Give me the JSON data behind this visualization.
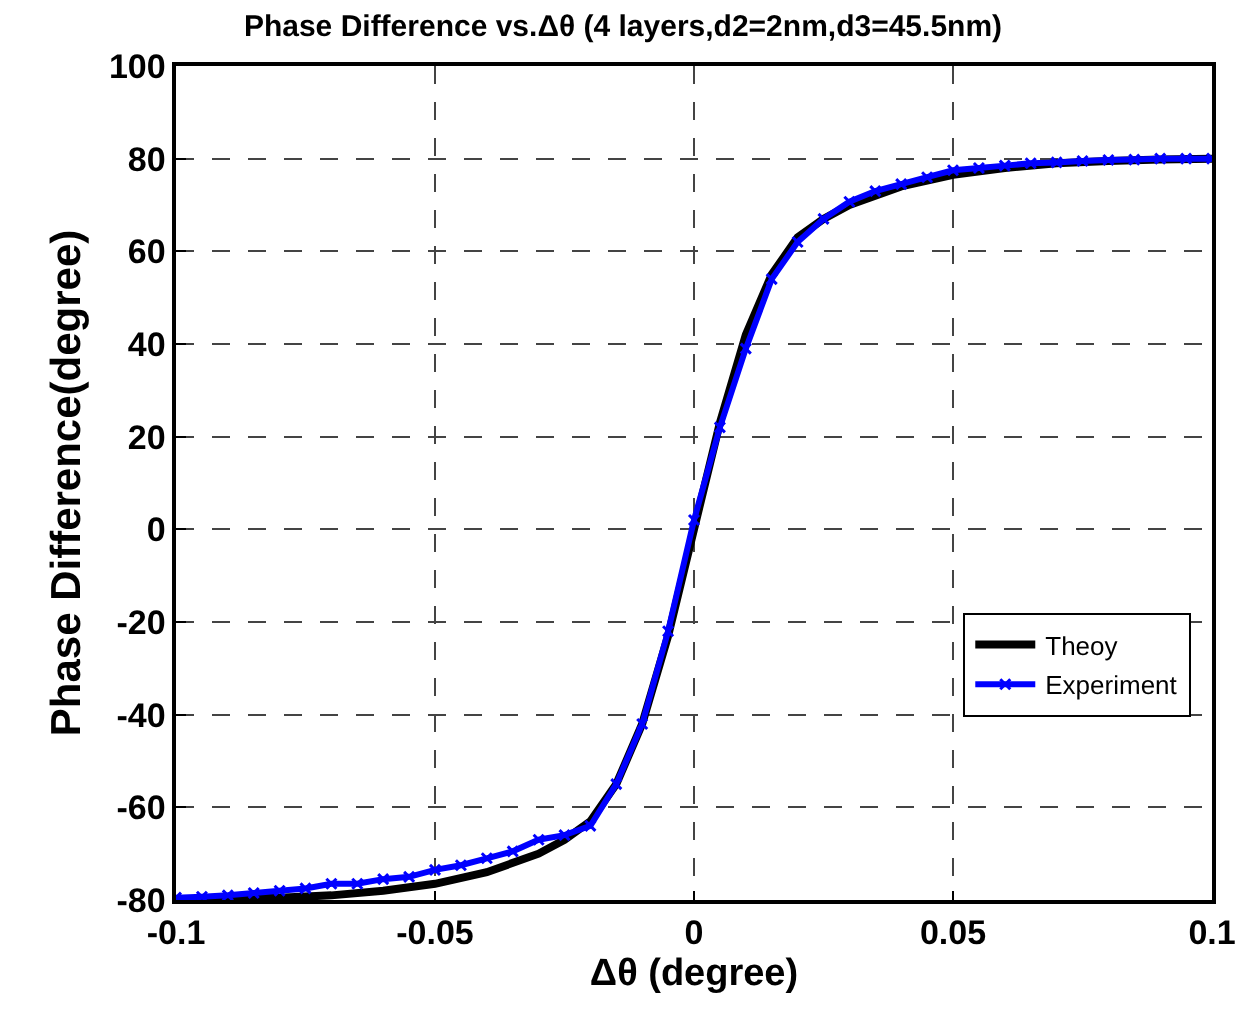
{
  "chart_data": {
    "type": "line",
    "title": "Phase Difference vs.Δθ (4 layers,d2=2nm,d3=45.5nm)",
    "xlabel": "Δθ (degree)",
    "ylabel": "Phase Difference(degree)",
    "xlim": [
      -0.1,
      0.1
    ],
    "xticks": [
      -0.1,
      -0.05,
      0,
      0.05,
      0.1
    ],
    "ylim": [
      -80,
      100
    ],
    "yticks": [
      -80,
      -60,
      -40,
      -20,
      0,
      20,
      40,
      60,
      80,
      100
    ],
    "grid": true,
    "legend": "bottom right",
    "series": [
      {
        "name": "Theoy",
        "color": "#000000",
        "marker": "none",
        "x": [
          -0.1,
          -0.09,
          -0.08,
          -0.07,
          -0.06,
          -0.05,
          -0.04,
          -0.03,
          -0.025,
          -0.02,
          -0.015,
          -0.01,
          -0.005,
          0,
          0.005,
          0.01,
          0.015,
          0.02,
          0.025,
          0.03,
          0.04,
          0.05,
          0.06,
          0.07,
          0.08,
          0.09,
          0.1
        ],
        "values": [
          -80,
          -79.8,
          -79.5,
          -79,
          -78,
          -76.5,
          -74,
          -70,
          -67,
          -63,
          -55,
          -42,
          -23,
          0,
          23,
          42,
          55,
          63,
          67,
          70,
          74,
          76.5,
          78,
          79,
          79.5,
          79.8,
          80
        ]
      },
      {
        "name": "Experiment",
        "color": "#0000ff",
        "marker": "cross",
        "x": [
          -0.1,
          -0.095,
          -0.09,
          -0.085,
          -0.08,
          -0.075,
          -0.07,
          -0.065,
          -0.06,
          -0.055,
          -0.05,
          -0.045,
          -0.04,
          -0.035,
          -0.03,
          -0.025,
          -0.02,
          -0.015,
          -0.01,
          -0.005,
          0,
          0.005,
          0.01,
          0.015,
          0.02,
          0.025,
          0.03,
          0.035,
          0.04,
          0.045,
          0.05,
          0.055,
          0.06,
          0.065,
          0.07,
          0.075,
          0.08,
          0.085,
          0.09,
          0.095,
          0.1
        ],
        "values": [
          -79.5,
          -79.3,
          -79,
          -78.5,
          -78,
          -77.5,
          -76.5,
          -76.5,
          -75.5,
          -75,
          -73.5,
          -72.5,
          -71,
          -69.5,
          -67,
          -66,
          -64,
          -55,
          -42,
          -22,
          2,
          22,
          39,
          54,
          62,
          67,
          70.7,
          73,
          74.5,
          76,
          77.5,
          78,
          78.5,
          79,
          79.2,
          79.5,
          79.7,
          79.8,
          80,
          80,
          80
        ]
      }
    ]
  }
}
